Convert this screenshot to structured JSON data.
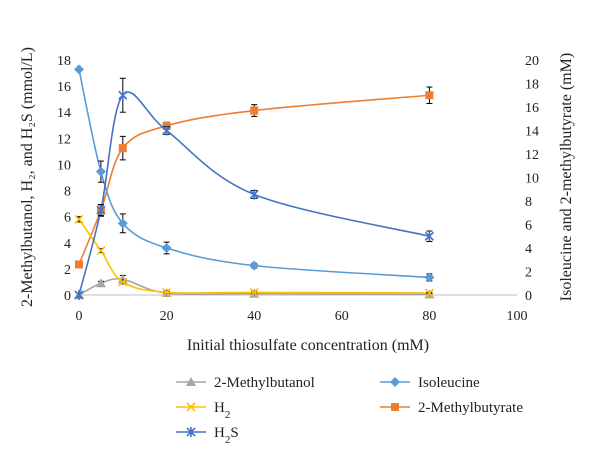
{
  "chart_data": {
    "type": "line",
    "xlabel": "Initial thiosulfate concentration (mM)",
    "ylabel_left": "2-Methylbutanol, H₂, and H₂S (mmol/L)",
    "ylabel_right": "Isoleucine and 2-methylbutyrate (mM)",
    "xlim": [
      0,
      100
    ],
    "ylim_left": [
      0,
      18
    ],
    "ylim_right": [
      0,
      20
    ],
    "xticks": [
      "0",
      "20",
      "40",
      "60",
      "80",
      "100"
    ],
    "yticks_left": [
      "0",
      "2",
      "4",
      "6",
      "8",
      "10",
      "12",
      "14",
      "16",
      "18"
    ],
    "yticks_right": [
      "0",
      "2",
      "4",
      "6",
      "8",
      "10",
      "12",
      "14",
      "16",
      "18",
      "20"
    ],
    "grid": false,
    "legend_position": "bottom",
    "series": [
      {
        "name": "2-Methylbutanol",
        "axis": "left",
        "color": "#a5a5a5",
        "marker": "triangle",
        "x": [
          0,
          5,
          10,
          20,
          40,
          80
        ],
        "y": [
          0,
          0.9,
          1.2,
          0.15,
          0.1,
          0.05
        ],
        "err": [
          0,
          0.15,
          0.3,
          0.1,
          0.05,
          0.05
        ]
      },
      {
        "name": "H2",
        "label_base": "H",
        "label_sub": "2",
        "axis": "left",
        "color": "#ffc000",
        "marker": "x",
        "x": [
          0,
          5,
          10,
          20,
          40,
          80
        ],
        "y": [
          5.8,
          3.4,
          1.0,
          0.2,
          0.2,
          0.15
        ],
        "err": [
          0.2,
          0.15,
          0.15,
          0.1,
          0.1,
          0.05
        ]
      },
      {
        "name": "H2S",
        "label_base": "H",
        "label_sub": "2",
        "label_tail": "S",
        "axis": "left",
        "color": "#4472c4",
        "marker": "star",
        "x": [
          0,
          5,
          10,
          20,
          40,
          80
        ],
        "y": [
          0,
          6.5,
          15.3,
          12.6,
          7.7,
          4.5
        ],
        "err": [
          0,
          0.4,
          1.3,
          0.3,
          0.3,
          0.4
        ]
      },
      {
        "name": "Isoleucine",
        "axis": "right",
        "color": "#5b9bd5",
        "marker": "diamond",
        "x": [
          0,
          5,
          10,
          20,
          40,
          80
        ],
        "y": [
          19.2,
          10.5,
          6.1,
          4.0,
          2.5,
          1.5
        ],
        "err": [
          0,
          0.9,
          0.8,
          0.5,
          0.2,
          0.3
        ]
      },
      {
        "name": "2-Methylbutyrate",
        "axis": "right",
        "color": "#ed7d31",
        "marker": "square",
        "x": [
          0,
          5,
          10,
          20,
          40,
          80
        ],
        "y": [
          2.6,
          7.2,
          12.5,
          14.4,
          15.7,
          17.0
        ],
        "err": [
          0,
          0.5,
          1.0,
          0.3,
          0.5,
          0.7
        ]
      }
    ]
  }
}
